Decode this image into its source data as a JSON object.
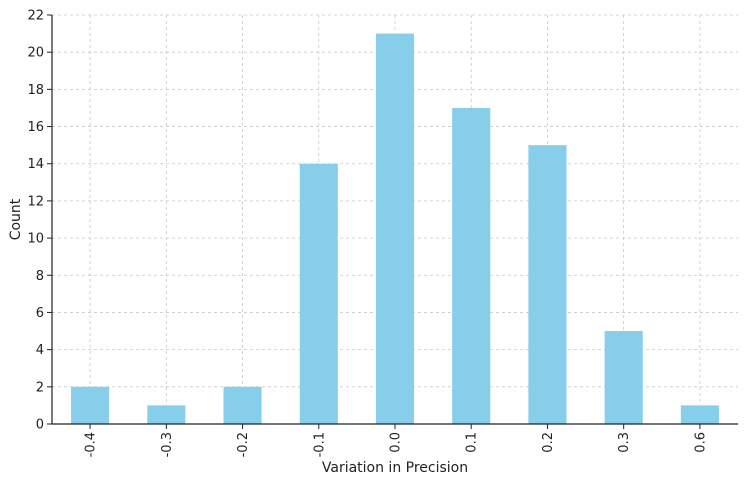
{
  "chart_data": {
    "type": "bar",
    "title": "",
    "xlabel": "Variation in Precision",
    "ylabel": "Count",
    "categories": [
      "-0.4",
      "-0.3",
      "-0.2",
      "-0.1",
      "0.0",
      "0.1",
      "0.2",
      "0.3",
      "0.6"
    ],
    "values": [
      2,
      1,
      2,
      14,
      21,
      17,
      15,
      5,
      1
    ],
    "ylim": [
      0,
      22
    ],
    "yticks": [
      "0",
      "2",
      "4",
      "6",
      "8",
      "10",
      "12",
      "14",
      "16",
      "18",
      "20",
      "22"
    ],
    "grid": true,
    "bar_color": "#87ceeb",
    "grid_color": "#c8c8c8",
    "x_tick_rotation": "vertical"
  }
}
